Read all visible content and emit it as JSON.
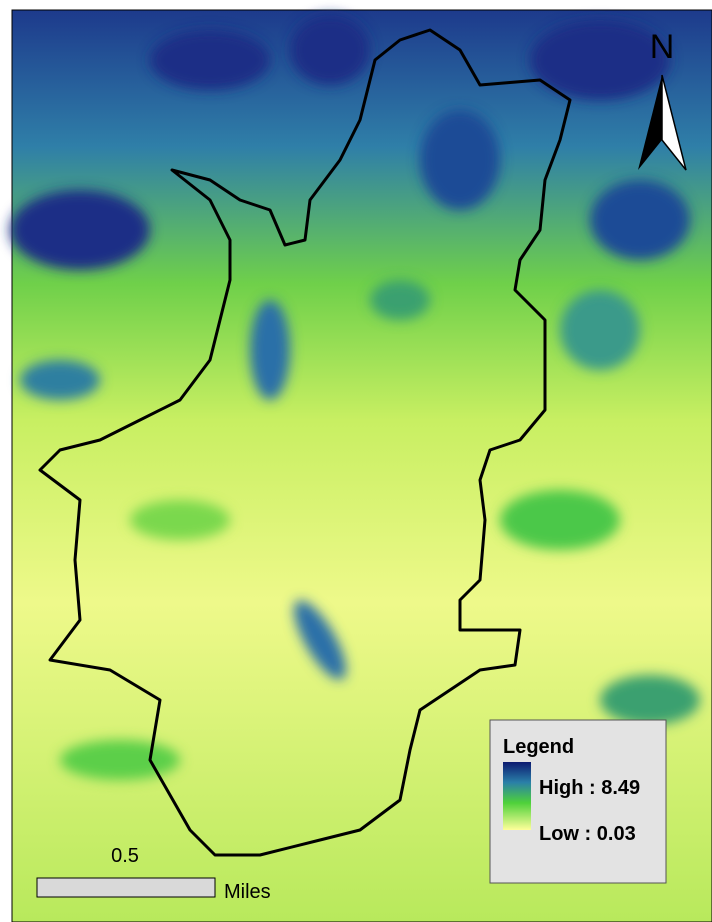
{
  "map": {
    "north_arrow": "N",
    "legend": {
      "title": "Legend",
      "high": "High : 8.49",
      "low": "Low : 0.03"
    },
    "scale_bar": {
      "label": "0.5",
      "unit": "Miles"
    }
  }
}
